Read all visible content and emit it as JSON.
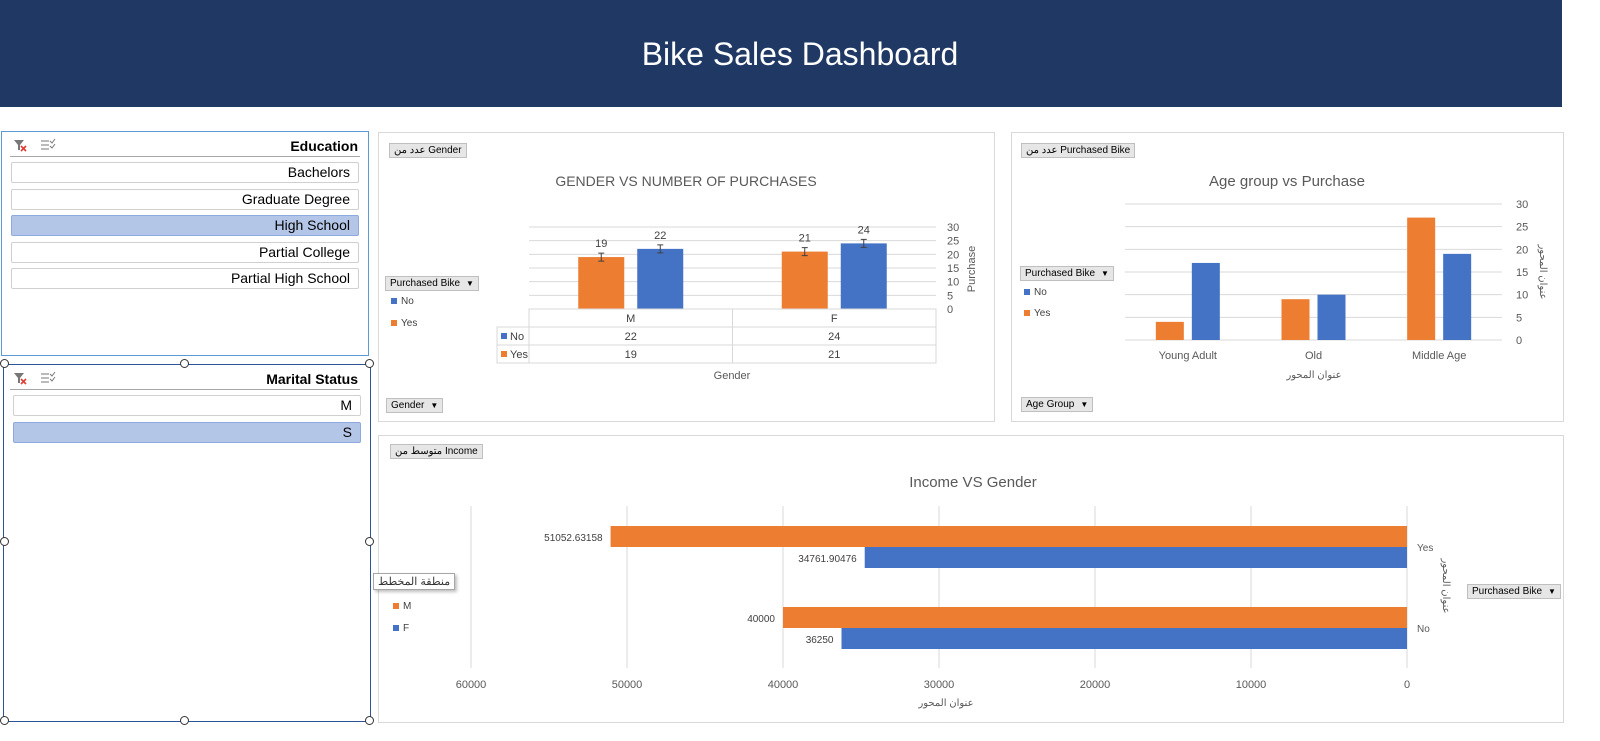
{
  "banner": {
    "title": "Bike Sales Dashboard"
  },
  "colors": {
    "banner": "#1f3864",
    "yes": "#ed7d31",
    "no": "#4472c4",
    "selected": "#b4c6e7"
  },
  "slicer_education": {
    "title": "Education",
    "items": [
      {
        "label": "Bachelors",
        "selected": false
      },
      {
        "label": "Graduate Degree",
        "selected": false
      },
      {
        "label": "High School",
        "selected": true
      },
      {
        "label": "Partial College",
        "selected": false
      },
      {
        "label": "Partial High School",
        "selected": false
      }
    ]
  },
  "slicer_marital": {
    "title": "Marital Status",
    "items": [
      {
        "label": "M",
        "selected": false
      },
      {
        "label": "S",
        "selected": true
      }
    ]
  },
  "chart_gender": {
    "value_button": "عدد من Gender",
    "series_button": "Purchased Bike",
    "axis_button": "Gender",
    "legend": [
      "No",
      "Yes"
    ]
  },
  "chart_age": {
    "value_button": "عدد من Purchased Bike",
    "series_button": "Purchased Bike",
    "axis_button": "Age Group",
    "legend": [
      "No",
      "Yes"
    ]
  },
  "chart_income": {
    "value_button": "متوسط من Income",
    "series_button": "Purchased Bike",
    "legend": [
      "M",
      "F"
    ],
    "tooltip": "منطقة المخطط"
  },
  "chart_data": [
    {
      "type": "bar",
      "title": "GENDER VS NUMBER OF PURCHASES",
      "xlabel": "Gender",
      "ylabel": "Purchase",
      "categories": [
        "M",
        "F"
      ],
      "series": [
        {
          "name": "Yes",
          "values": [
            19,
            21
          ]
        },
        {
          "name": "No",
          "values": [
            22,
            24
          ]
        }
      ],
      "ylim": [
        0,
        30
      ],
      "yticks": [
        0,
        5,
        10,
        15,
        20,
        25,
        30
      ],
      "data_table": true,
      "grid": true
    },
    {
      "type": "bar",
      "title": "Age group vs Purchase",
      "xlabel": "عنوان المحور",
      "ylabel": "عنوان المحور",
      "categories": [
        "Young Adult",
        "Old",
        "Middle Age"
      ],
      "series": [
        {
          "name": "Yes",
          "values": [
            4,
            9,
            27
          ]
        },
        {
          "name": "No",
          "values": [
            17,
            10,
            19
          ]
        }
      ],
      "ylim": [
        0,
        30
      ],
      "yticks": [
        0,
        5,
        10,
        15,
        20,
        25,
        30
      ],
      "grid": true
    },
    {
      "type": "bar",
      "orientation": "horizontal",
      "title": "Income VS Gender",
      "xlabel": "عنوان المحور",
      "ylabel": "عنوان المحور",
      "categories": [
        "Yes",
        "No"
      ],
      "series": [
        {
          "name": "M",
          "values": [
            51052.63158,
            40000
          ]
        },
        {
          "name": "F",
          "values": [
            34761.90476,
            36250
          ]
        }
      ],
      "value_labels": [
        [
          "51052.63158",
          "34761.90476"
        ],
        [
          "40000",
          "36250"
        ]
      ],
      "xlim": [
        0,
        60000
      ],
      "xticks": [
        0,
        10000,
        20000,
        30000,
        40000,
        50000,
        60000
      ],
      "x_reversed": true,
      "grid": true
    }
  ]
}
